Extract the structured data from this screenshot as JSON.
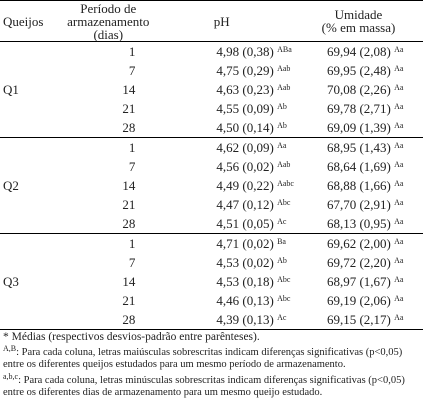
{
  "table": {
    "headers": [
      [
        "Queijos"
      ],
      [
        "Período de",
        "armazenamento",
        "(dias)"
      ],
      [
        "pH"
      ],
      [
        "Umidade",
        "(% em massa)"
      ]
    ],
    "groups": [
      {
        "label": "Q1",
        "rows": [
          {
            "day": 1,
            "ph": "4,98 (0,38)",
            "ph_sup": "ABa",
            "umidade": "69,94 (2,08)",
            "umidade_sup": "Aa"
          },
          {
            "day": 7,
            "ph": "4,75 (0,29)",
            "ph_sup": "Aab",
            "umidade": "69,95 (2,48)",
            "umidade_sup": "Aa"
          },
          {
            "day": 14,
            "ph": "4,63 (0,23)",
            "ph_sup": "Aab",
            "umidade": "70,08 (2,26)",
            "umidade_sup": "Aa"
          },
          {
            "day": 21,
            "ph": "4,55 (0,09)",
            "ph_sup": "Ab",
            "umidade": "69,78 (2,71)",
            "umidade_sup": "Aa"
          },
          {
            "day": 28,
            "ph": "4,50 (0,14)",
            "ph_sup": "Ab",
            "umidade": "69,09 (1,39)",
            "umidade_sup": "Aa"
          }
        ]
      },
      {
        "label": "Q2",
        "rows": [
          {
            "day": 1,
            "ph": "4,62 (0,09)",
            "ph_sup": "Aa",
            "umidade": "68,95 (1,43)",
            "umidade_sup": "Aa"
          },
          {
            "day": 7,
            "ph": "4,56 (0,02)",
            "ph_sup": "Aab",
            "umidade": "68,64 (1,69)",
            "umidade_sup": "Aa"
          },
          {
            "day": 14,
            "ph": "4,49 (0,22)",
            "ph_sup": "Aabc",
            "umidade": "68,88 (1,66)",
            "umidade_sup": "Aa"
          },
          {
            "day": 21,
            "ph": "4,47 (0,12)",
            "ph_sup": "Abc",
            "umidade": "67,70 (2,91)",
            "umidade_sup": "Aa"
          },
          {
            "day": 28,
            "ph": "4,51 (0,05)",
            "ph_sup": "Ac",
            "umidade": "68,13 (0,95)",
            "umidade_sup": "Aa"
          }
        ]
      },
      {
        "label": "Q3",
        "rows": [
          {
            "day": 1,
            "ph": "4,71 (0,02)",
            "ph_sup": "Ba",
            "umidade": "69,62 (2,00)",
            "umidade_sup": "Aa"
          },
          {
            "day": 7,
            "ph": "4,53 (0,02)",
            "ph_sup": "Ab",
            "umidade": "69,72 (2,20)",
            "umidade_sup": "Aa"
          },
          {
            "day": 14,
            "ph": "4,53 (0,18)",
            "ph_sup": "Abc",
            "umidade": "68,97 (1,67)",
            "umidade_sup": "Aa"
          },
          {
            "day": 21,
            "ph": "4,46 (0,13)",
            "ph_sup": "Abc",
            "umidade": "69,19 (2,06)",
            "umidade_sup": "Aa"
          },
          {
            "day": 28,
            "ph": "4,39 (0,13)",
            "ph_sup": "Ac",
            "umidade": "69,15 (2,17)",
            "umidade_sup": "Aa"
          }
        ]
      }
    ]
  },
  "notes": [
    {
      "text": "* Médias (respectivos desvios-padrão entre parênteses)."
    },
    {
      "sup": "A,B",
      "text": ": Para cada coluna, letras maiúsculas sobrescritas indicam diferenças significativas (p<0,05) entre os diferentes queijos estudados para um mesmo período de armazenamento."
    },
    {
      "sup": "a,b,c",
      "text": ": Para cada coluna, letras minúsculas sobrescritas indicam diferenças significativas (p<0,05) entre os diferentes dias de armazenamento para um mesmo queijo estudado."
    }
  ]
}
